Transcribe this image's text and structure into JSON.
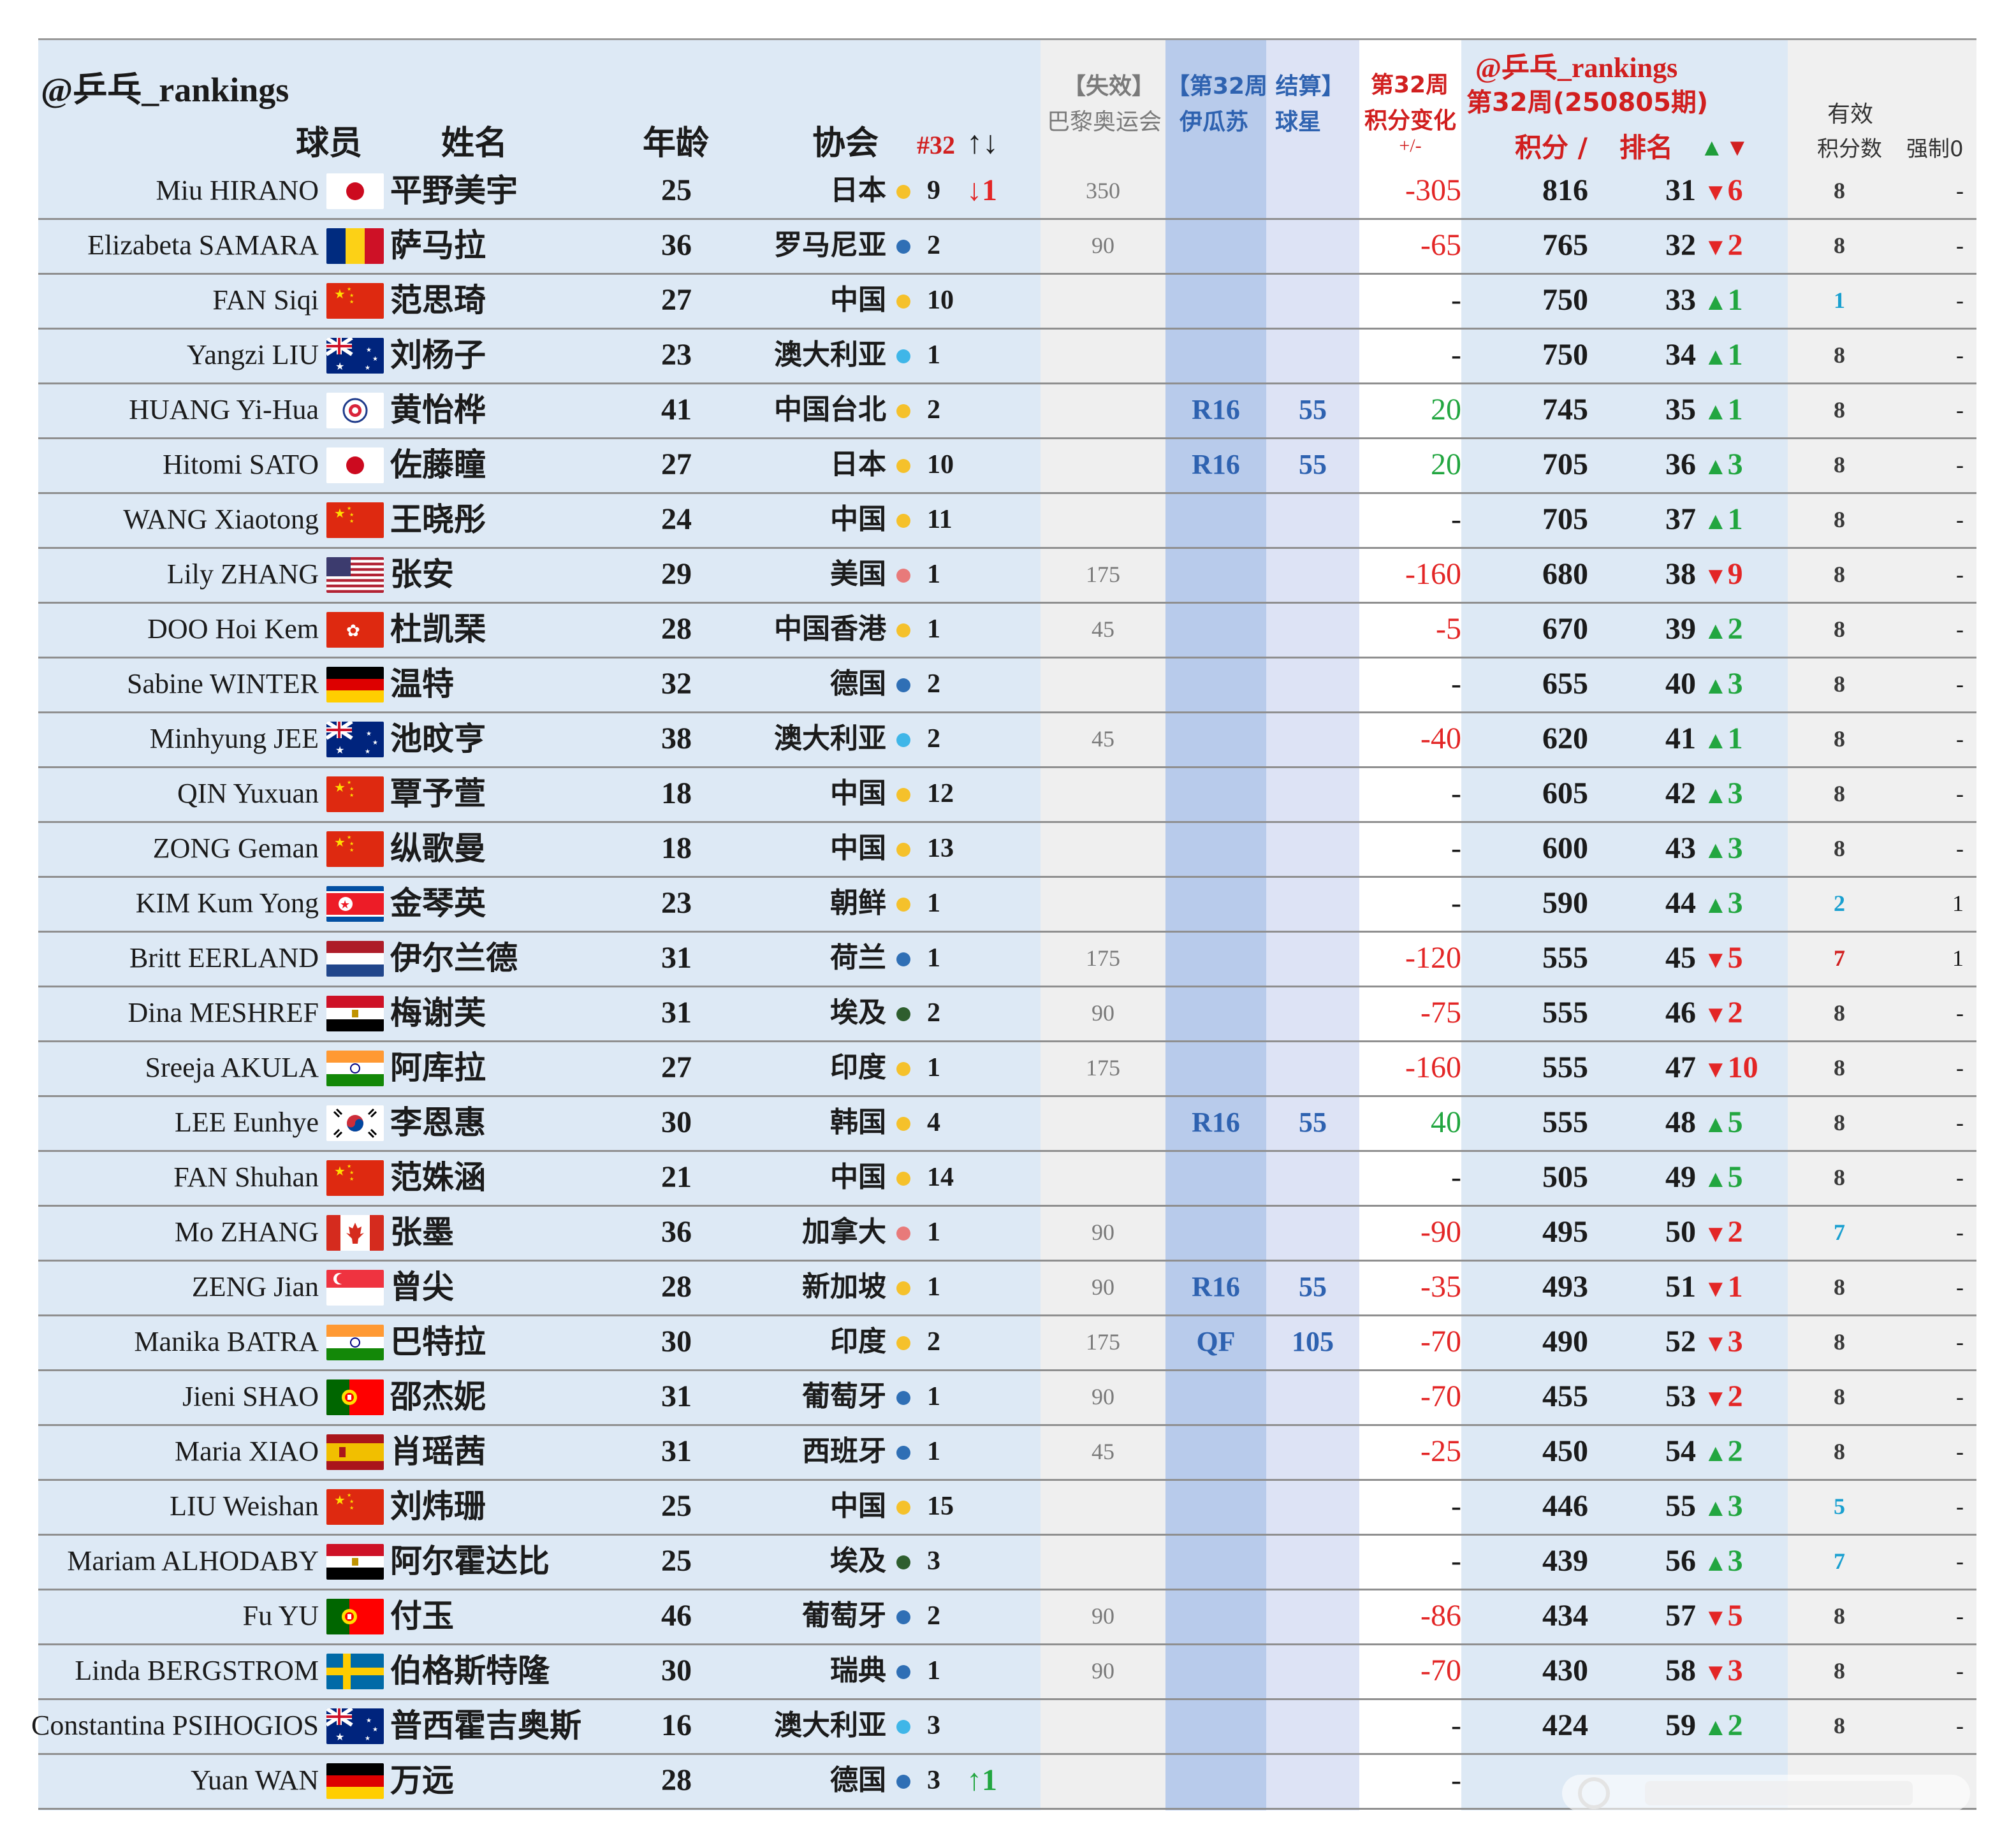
{
  "header": {
    "brand": "@乒乓_rankings",
    "col_player": "球员",
    "col_name": "姓名",
    "col_age": "年龄",
    "col_assoc": "协会",
    "col_32": "#32",
    "col_32_arrows": "↑↓",
    "paris_line1": "【失效】",
    "paris_line2": "巴黎奥运会",
    "ss_line1": "【第32周 结算】",
    "ss_line2a": "伊瓜苏",
    "ss_line2b": "球星",
    "chg_line1": "第32周",
    "chg_line2": "积分变化",
    "chg_line3": "+/-",
    "rank_brand": "@乒乓_rankings",
    "rank_week": "第32周(250805期)",
    "rank_pts": "积分 /",
    "rank_rank": "排名",
    "rank_arrows_up": "▲",
    "rank_arrows_down": "▼",
    "valid_line1": "有效",
    "valid_line2": "积分数",
    "force_label": "强制0"
  },
  "colors": {
    "red": "#d11f1f",
    "green": "#1f9d3a",
    "blue": "#2e62b0",
    "yellow_dot": "#f5c12b",
    "blue_dot": "#2f6fb5",
    "lightblue_dot": "#3fb6e8",
    "pink_dot": "#e87a7a",
    "darkgreen_dot": "#2e5e2e"
  },
  "rows": [
    {
      "en": "Miu HIRANO",
      "flag": "jp",
      "cn": "平野美宇",
      "age": "25",
      "assoc": "日本",
      "dot": "yellow",
      "cnt": "9",
      "move": "↓1",
      "move_dir": "down",
      "paris": "350",
      "ss_round": "",
      "ss_pts": "",
      "chg": "-305",
      "chg_kind": "neg",
      "pts": "816",
      "rank": "31",
      "rm_arrow": "▼",
      "rm_val": "6",
      "rm_dir": "down",
      "valid": "8",
      "valid_kind": "dark",
      "force": "-"
    },
    {
      "en": "Elizabeta SAMARA",
      "flag": "ro",
      "cn": "萨马拉",
      "age": "36",
      "assoc": "罗马尼亚",
      "dot": "blue",
      "cnt": "2",
      "move": "",
      "move_dir": "",
      "paris": "90",
      "ss_round": "",
      "ss_pts": "",
      "chg": "-65",
      "chg_kind": "neg",
      "pts": "765",
      "rank": "32",
      "rm_arrow": "▼",
      "rm_val": "2",
      "rm_dir": "down",
      "valid": "8",
      "valid_kind": "dark",
      "force": "-"
    },
    {
      "en": "FAN Siqi",
      "flag": "cn",
      "cn": "范思琦",
      "age": "27",
      "assoc": "中国",
      "dot": "yellow",
      "cnt": "10",
      "move": "",
      "move_dir": "",
      "paris": "",
      "ss_round": "",
      "ss_pts": "",
      "chg": "-",
      "chg_kind": "dash",
      "pts": "750",
      "rank": "33",
      "rm_arrow": "▲",
      "rm_val": "1",
      "rm_dir": "up",
      "valid": "1",
      "valid_kind": "cyan",
      "force": "-"
    },
    {
      "en": "Yangzi LIU",
      "flag": "au",
      "cn": "刘杨子",
      "age": "23",
      "assoc": "澳大利亚",
      "dot": "lightblue",
      "cnt": "1",
      "move": "",
      "move_dir": "",
      "paris": "",
      "ss_round": "",
      "ss_pts": "",
      "chg": "-",
      "chg_kind": "dash",
      "pts": "750",
      "rank": "34",
      "rm_arrow": "▲",
      "rm_val": "1",
      "rm_dir": "up",
      "valid": "8",
      "valid_kind": "dark",
      "force": "-"
    },
    {
      "en": "HUANG Yi-Hua",
      "flag": "tpe",
      "cn": "黄怡桦",
      "age": "41",
      "assoc": "中国台北",
      "dot": "yellow",
      "cnt": "2",
      "move": "",
      "move_dir": "",
      "paris": "",
      "ss_round": "R16",
      "ss_pts": "55",
      "chg": "20",
      "chg_kind": "pos",
      "pts": "745",
      "rank": "35",
      "rm_arrow": "▲",
      "rm_val": "1",
      "rm_dir": "up",
      "valid": "8",
      "valid_kind": "dark",
      "force": "-"
    },
    {
      "en": "Hitomi SATO",
      "flag": "jp",
      "cn": "佐藤瞳",
      "age": "27",
      "assoc": "日本",
      "dot": "yellow",
      "cnt": "10",
      "move": "",
      "move_dir": "",
      "paris": "",
      "ss_round": "R16",
      "ss_pts": "55",
      "chg": "20",
      "chg_kind": "pos",
      "pts": "705",
      "rank": "36",
      "rm_arrow": "▲",
      "rm_val": "3",
      "rm_dir": "up",
      "valid": "8",
      "valid_kind": "dark",
      "force": "-"
    },
    {
      "en": "WANG Xiaotong",
      "flag": "cn",
      "cn": "王晓彤",
      "age": "24",
      "assoc": "中国",
      "dot": "yellow",
      "cnt": "11",
      "move": "",
      "move_dir": "",
      "paris": "",
      "ss_round": "",
      "ss_pts": "",
      "chg": "-",
      "chg_kind": "dash",
      "pts": "705",
      "rank": "37",
      "rm_arrow": "▲",
      "rm_val": "1",
      "rm_dir": "up",
      "valid": "8",
      "valid_kind": "dark",
      "force": "-"
    },
    {
      "en": "Lily ZHANG",
      "flag": "us",
      "cn": "张安",
      "age": "29",
      "assoc": "美国",
      "dot": "pink",
      "cnt": "1",
      "move": "",
      "move_dir": "",
      "paris": "175",
      "ss_round": "",
      "ss_pts": "",
      "chg": "-160",
      "chg_kind": "neg",
      "pts": "680",
      "rank": "38",
      "rm_arrow": "▼",
      "rm_val": "9",
      "rm_dir": "down",
      "valid": "8",
      "valid_kind": "dark",
      "force": "-"
    },
    {
      "en": "DOO Hoi Kem",
      "flag": "hk",
      "cn": "杜凯琹",
      "age": "28",
      "assoc": "中国香港",
      "dot": "yellow",
      "cnt": "1",
      "move": "",
      "move_dir": "",
      "paris": "45",
      "ss_round": "",
      "ss_pts": "",
      "chg": "-5",
      "chg_kind": "neg",
      "pts": "670",
      "rank": "39",
      "rm_arrow": "▲",
      "rm_val": "2",
      "rm_dir": "up",
      "valid": "8",
      "valid_kind": "dark",
      "force": "-"
    },
    {
      "en": "Sabine WINTER",
      "flag": "de",
      "cn": "温特",
      "age": "32",
      "assoc": "德国",
      "dot": "blue",
      "cnt": "2",
      "move": "",
      "move_dir": "",
      "paris": "",
      "ss_round": "",
      "ss_pts": "",
      "chg": "-",
      "chg_kind": "dash",
      "pts": "655",
      "rank": "40",
      "rm_arrow": "▲",
      "rm_val": "3",
      "rm_dir": "up",
      "valid": "8",
      "valid_kind": "dark",
      "force": "-"
    },
    {
      "en": "Minhyung JEE",
      "flag": "au",
      "cn": "池旼亨",
      "age": "38",
      "assoc": "澳大利亚",
      "dot": "lightblue",
      "cnt": "2",
      "move": "",
      "move_dir": "",
      "paris": "45",
      "ss_round": "",
      "ss_pts": "",
      "chg": "-40",
      "chg_kind": "neg",
      "pts": "620",
      "rank": "41",
      "rm_arrow": "▲",
      "rm_val": "1",
      "rm_dir": "up",
      "valid": "8",
      "valid_kind": "dark",
      "force": "-"
    },
    {
      "en": "QIN Yuxuan",
      "flag": "cn",
      "cn": "覃予萱",
      "age": "18",
      "assoc": "中国",
      "dot": "yellow",
      "cnt": "12",
      "move": "",
      "move_dir": "",
      "paris": "",
      "ss_round": "",
      "ss_pts": "",
      "chg": "-",
      "chg_kind": "dash",
      "pts": "605",
      "rank": "42",
      "rm_arrow": "▲",
      "rm_val": "3",
      "rm_dir": "up",
      "valid": "8",
      "valid_kind": "dark",
      "force": "-"
    },
    {
      "en": "ZONG Geman",
      "flag": "cn",
      "cn": "纵歌曼",
      "age": "18",
      "assoc": "中国",
      "dot": "yellow",
      "cnt": "13",
      "move": "",
      "move_dir": "",
      "paris": "",
      "ss_round": "",
      "ss_pts": "",
      "chg": "-",
      "chg_kind": "dash",
      "pts": "600",
      "rank": "43",
      "rm_arrow": "▲",
      "rm_val": "3",
      "rm_dir": "up",
      "valid": "8",
      "valid_kind": "dark",
      "force": "-"
    },
    {
      "en": "KIM Kum Yong",
      "flag": "kp",
      "cn": "金琴英",
      "age": "23",
      "assoc": "朝鲜",
      "dot": "yellow",
      "cnt": "1",
      "move": "",
      "move_dir": "",
      "paris": "",
      "ss_round": "",
      "ss_pts": "",
      "chg": "-",
      "chg_kind": "dash",
      "pts": "590",
      "rank": "44",
      "rm_arrow": "▲",
      "rm_val": "3",
      "rm_dir": "up",
      "valid": "2",
      "valid_kind": "cyan",
      "force": "1"
    },
    {
      "en": "Britt EERLAND",
      "flag": "nl",
      "cn": "伊尔兰德",
      "age": "31",
      "assoc": "荷兰",
      "dot": "blue",
      "cnt": "1",
      "move": "",
      "move_dir": "",
      "paris": "175",
      "ss_round": "",
      "ss_pts": "",
      "chg": "-120",
      "chg_kind": "neg",
      "pts": "555",
      "rank": "45",
      "rm_arrow": "▼",
      "rm_val": "5",
      "rm_dir": "down",
      "valid": "7",
      "valid_kind": "red",
      "force": "1"
    },
    {
      "en": "Dina MESHREF",
      "flag": "eg",
      "cn": "梅谢芙",
      "age": "31",
      "assoc": "埃及",
      "dot": "darkgreen",
      "cnt": "2",
      "move": "",
      "move_dir": "",
      "paris": "90",
      "ss_round": "",
      "ss_pts": "",
      "chg": "-75",
      "chg_kind": "neg",
      "pts": "555",
      "rank": "46",
      "rm_arrow": "▼",
      "rm_val": "2",
      "rm_dir": "down",
      "valid": "8",
      "valid_kind": "dark",
      "force": "-"
    },
    {
      "en": "Sreeja AKULA",
      "flag": "in",
      "cn": "阿库拉",
      "age": "27",
      "assoc": "印度",
      "dot": "yellow",
      "cnt": "1",
      "move": "",
      "move_dir": "",
      "paris": "175",
      "ss_round": "",
      "ss_pts": "",
      "chg": "-160",
      "chg_kind": "neg",
      "pts": "555",
      "rank": "47",
      "rm_arrow": "▼",
      "rm_val": "10",
      "rm_dir": "down",
      "valid": "8",
      "valid_kind": "dark",
      "force": "-"
    },
    {
      "en": "LEE Eunhye",
      "flag": "kr",
      "cn": "李恩惠",
      "age": "30",
      "assoc": "韩国",
      "dot": "yellow",
      "cnt": "4",
      "move": "",
      "move_dir": "",
      "paris": "",
      "ss_round": "R16",
      "ss_pts": "55",
      "chg": "40",
      "chg_kind": "pos",
      "pts": "555",
      "rank": "48",
      "rm_arrow": "▲",
      "rm_val": "5",
      "rm_dir": "up",
      "valid": "8",
      "valid_kind": "dark",
      "force": "-"
    },
    {
      "en": "FAN Shuhan",
      "flag": "cn",
      "cn": "范姝涵",
      "age": "21",
      "assoc": "中国",
      "dot": "yellow",
      "cnt": "14",
      "move": "",
      "move_dir": "",
      "paris": "",
      "ss_round": "",
      "ss_pts": "",
      "chg": "-",
      "chg_kind": "dash",
      "pts": "505",
      "rank": "49",
      "rm_arrow": "▲",
      "rm_val": "5",
      "rm_dir": "up",
      "valid": "8",
      "valid_kind": "dark",
      "force": "-"
    },
    {
      "en": "Mo ZHANG",
      "flag": "ca",
      "cn": "张墨",
      "age": "36",
      "assoc": "加拿大",
      "dot": "pink",
      "cnt": "1",
      "move": "",
      "move_dir": "",
      "paris": "90",
      "ss_round": "",
      "ss_pts": "",
      "chg": "-90",
      "chg_kind": "neg",
      "pts": "495",
      "rank": "50",
      "rm_arrow": "▼",
      "rm_val": "2",
      "rm_dir": "down",
      "valid": "7",
      "valid_kind": "cyan",
      "force": "-"
    },
    {
      "en": "ZENG Jian",
      "flag": "sg",
      "cn": "曾尖",
      "age": "28",
      "assoc": "新加坡",
      "dot": "yellow",
      "cnt": "1",
      "move": "",
      "move_dir": "",
      "paris": "90",
      "ss_round": "R16",
      "ss_pts": "55",
      "chg": "-35",
      "chg_kind": "neg",
      "pts": "493",
      "rank": "51",
      "rm_arrow": "▼",
      "rm_val": "1",
      "rm_dir": "down",
      "valid": "8",
      "valid_kind": "dark",
      "force": "-"
    },
    {
      "en": "Manika BATRA",
      "flag": "in",
      "cn": "巴特拉",
      "age": "30",
      "assoc": "印度",
      "dot": "yellow",
      "cnt": "2",
      "move": "",
      "move_dir": "",
      "paris": "175",
      "ss_round": "QF",
      "ss_pts": "105",
      "chg": "-70",
      "chg_kind": "neg",
      "pts": "490",
      "rank": "52",
      "rm_arrow": "▼",
      "rm_val": "3",
      "rm_dir": "down",
      "valid": "8",
      "valid_kind": "dark",
      "force": "-"
    },
    {
      "en": "Jieni SHAO",
      "flag": "pt",
      "cn": "邵杰妮",
      "age": "31",
      "assoc": "葡萄牙",
      "dot": "blue",
      "cnt": "1",
      "move": "",
      "move_dir": "",
      "paris": "90",
      "ss_round": "",
      "ss_pts": "",
      "chg": "-70",
      "chg_kind": "neg",
      "pts": "455",
      "rank": "53",
      "rm_arrow": "▼",
      "rm_val": "2",
      "rm_dir": "down",
      "valid": "8",
      "valid_kind": "dark",
      "force": "-"
    },
    {
      "en": "Maria XIAO",
      "flag": "es",
      "cn": "肖瑶茜",
      "age": "31",
      "assoc": "西班牙",
      "dot": "blue",
      "cnt": "1",
      "move": "",
      "move_dir": "",
      "paris": "45",
      "ss_round": "",
      "ss_pts": "",
      "chg": "-25",
      "chg_kind": "neg",
      "pts": "450",
      "rank": "54",
      "rm_arrow": "▲",
      "rm_val": "2",
      "rm_dir": "up",
      "valid": "8",
      "valid_kind": "dark",
      "force": "-"
    },
    {
      "en": "LIU Weishan",
      "flag": "cn",
      "cn": "刘炜珊",
      "age": "25",
      "assoc": "中国",
      "dot": "yellow",
      "cnt": "15",
      "move": "",
      "move_dir": "",
      "paris": "",
      "ss_round": "",
      "ss_pts": "",
      "chg": "-",
      "chg_kind": "dash",
      "pts": "446",
      "rank": "55",
      "rm_arrow": "▲",
      "rm_val": "3",
      "rm_dir": "up",
      "valid": "5",
      "valid_kind": "cyan",
      "force": "-"
    },
    {
      "en": "Mariam ALHODABY",
      "flag": "eg",
      "cn": "阿尔霍达比",
      "age": "25",
      "assoc": "埃及",
      "dot": "darkgreen",
      "cnt": "3",
      "move": "",
      "move_dir": "",
      "paris": "",
      "ss_round": "",
      "ss_pts": "",
      "chg": "-",
      "chg_kind": "dash",
      "pts": "439",
      "rank": "56",
      "rm_arrow": "▲",
      "rm_val": "3",
      "rm_dir": "up",
      "valid": "7",
      "valid_kind": "cyan",
      "force": "-"
    },
    {
      "en": "Fu YU",
      "flag": "pt",
      "cn": "付玉",
      "age": "46",
      "assoc": "葡萄牙",
      "dot": "blue",
      "cnt": "2",
      "move": "",
      "move_dir": "",
      "paris": "90",
      "ss_round": "",
      "ss_pts": "",
      "chg": "-86",
      "chg_kind": "neg",
      "pts": "434",
      "rank": "57",
      "rm_arrow": "▼",
      "rm_val": "5",
      "rm_dir": "down",
      "valid": "8",
      "valid_kind": "dark",
      "force": "-"
    },
    {
      "en": "Linda BERGSTROM",
      "flag": "se",
      "cn": "伯格斯特隆",
      "age": "30",
      "assoc": "瑞典",
      "dot": "blue",
      "cnt": "1",
      "move": "",
      "move_dir": "",
      "paris": "90",
      "ss_round": "",
      "ss_pts": "",
      "chg": "-70",
      "chg_kind": "neg",
      "pts": "430",
      "rank": "58",
      "rm_arrow": "▼",
      "rm_val": "3",
      "rm_dir": "down",
      "valid": "8",
      "valid_kind": "dark",
      "force": "-"
    },
    {
      "en": "Constantina PSIHOGIOS",
      "flag": "au",
      "cn": "普西霍吉奥斯",
      "age": "16",
      "assoc": "澳大利亚",
      "dot": "lightblue",
      "cnt": "3",
      "move": "",
      "move_dir": "",
      "paris": "",
      "ss_round": "",
      "ss_pts": "",
      "chg": "-",
      "chg_kind": "dash",
      "pts": "424",
      "rank": "59",
      "rm_arrow": "▲",
      "rm_val": "2",
      "rm_dir": "up",
      "valid": "8",
      "valid_kind": "dark",
      "force": "-"
    },
    {
      "en": "Yuan WAN",
      "flag": "de",
      "cn": "万远",
      "age": "28",
      "assoc": "德国",
      "dot": "blue",
      "cnt": "3",
      "move": "↑1",
      "move_dir": "up",
      "paris": "",
      "ss_round": "",
      "ss_pts": "",
      "chg": "-",
      "chg_kind": "dash",
      "pts": "",
      "rank": "",
      "rm_arrow": "",
      "rm_val": "",
      "rm_dir": "",
      "valid": "",
      "valid_kind": "dark",
      "force": ""
    }
  ]
}
